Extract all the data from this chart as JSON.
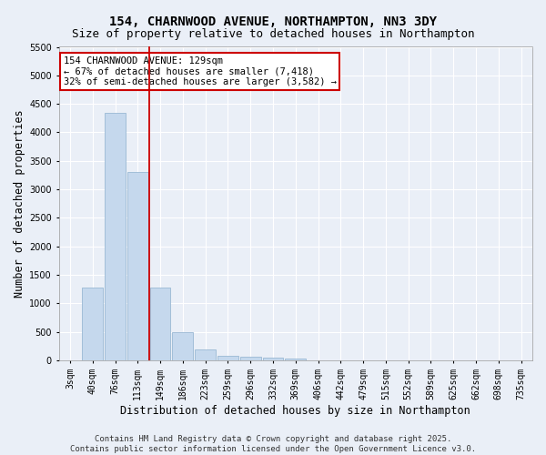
{
  "title": "154, CHARNWOOD AVENUE, NORTHAMPTON, NN3 3DY",
  "subtitle": "Size of property relative to detached houses in Northampton",
  "xlabel": "Distribution of detached houses by size in Northampton",
  "ylabel": "Number of detached properties",
  "categories": [
    "3sqm",
    "40sqm",
    "76sqm",
    "113sqm",
    "149sqm",
    "186sqm",
    "223sqm",
    "259sqm",
    "296sqm",
    "332sqm",
    "369sqm",
    "406sqm",
    "442sqm",
    "479sqm",
    "515sqm",
    "552sqm",
    "589sqm",
    "625sqm",
    "662sqm",
    "698sqm",
    "735sqm"
  ],
  "values": [
    0,
    1270,
    4350,
    3300,
    1270,
    490,
    190,
    75,
    60,
    45,
    30,
    0,
    0,
    0,
    0,
    0,
    0,
    0,
    0,
    0,
    0
  ],
  "bar_color": "#c5d8ed",
  "bar_edge_color": "#9ab8d4",
  "vline_color": "#cc0000",
  "vline_x_index": 3.5,
  "annotation_text": "154 CHARNWOOD AVENUE: 129sqm\n← 67% of detached houses are smaller (7,418)\n32% of semi-detached houses are larger (3,582) →",
  "annotation_box_facecolor": "#ffffff",
  "annotation_box_edgecolor": "#cc0000",
  "ylim": [
    0,
    5500
  ],
  "yticks": [
    0,
    500,
    1000,
    1500,
    2000,
    2500,
    3000,
    3500,
    4000,
    4500,
    5000,
    5500
  ],
  "background_color": "#eaeff7",
  "grid_color": "#ffffff",
  "footer_line1": "Contains HM Land Registry data © Crown copyright and database right 2025.",
  "footer_line2": "Contains public sector information licensed under the Open Government Licence v3.0.",
  "title_fontsize": 10,
  "subtitle_fontsize": 9,
  "axis_label_fontsize": 8.5,
  "tick_fontsize": 7,
  "annotation_fontsize": 7.5,
  "footer_fontsize": 6.5
}
